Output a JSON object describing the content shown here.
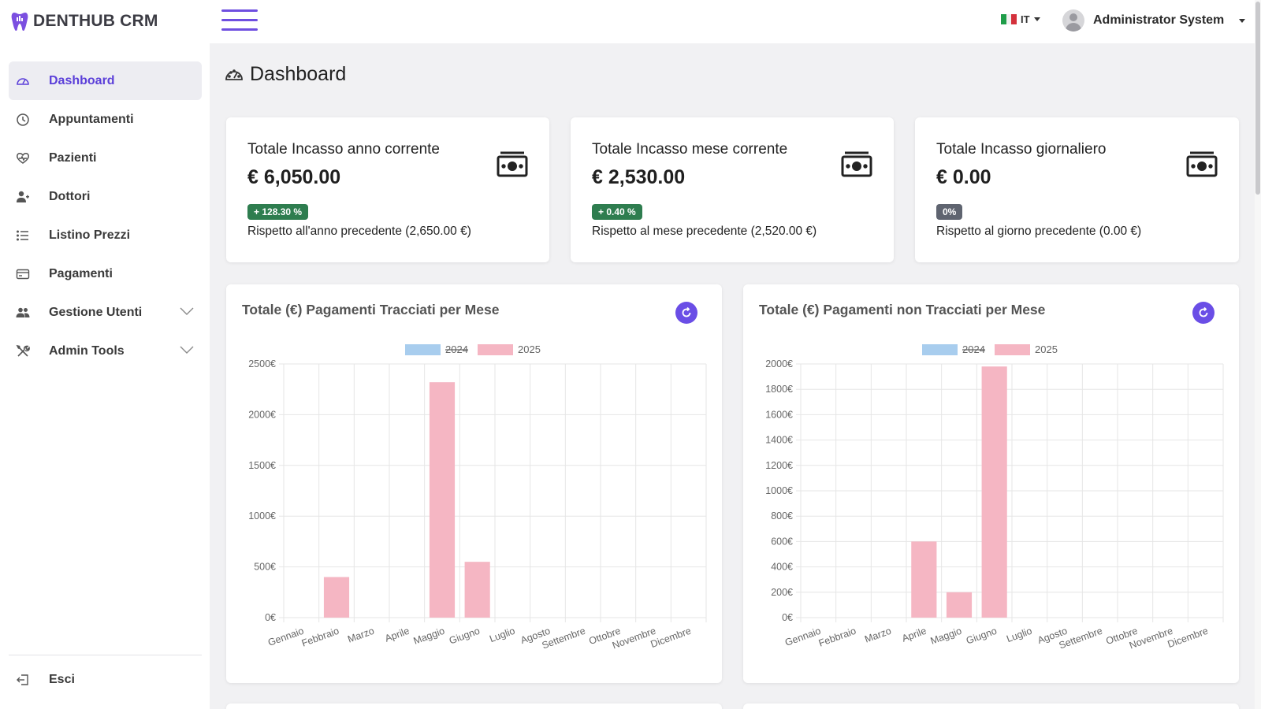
{
  "brand": {
    "name": "DENTHUB CRM"
  },
  "header": {
    "language": "IT",
    "user_name": "Administrator System"
  },
  "sidebar": {
    "items": [
      {
        "label": "Dashboard",
        "icon": "gauge-icon",
        "active": true
      },
      {
        "label": "Appuntamenti",
        "icon": "clock-icon"
      },
      {
        "label": "Pazienti",
        "icon": "heart-pulse-icon"
      },
      {
        "label": "Dottori",
        "icon": "user-doctor-icon"
      },
      {
        "label": "Listino Prezzi",
        "icon": "list-icon"
      },
      {
        "label": "Pagamenti",
        "icon": "credit-card-icon"
      },
      {
        "label": "Gestione Utenti",
        "icon": "users-icon",
        "expandable": true
      },
      {
        "label": "Admin Tools",
        "icon": "tools-icon",
        "expandable": true
      }
    ],
    "logout_label": "Esci"
  },
  "page": {
    "title": "Dashboard"
  },
  "stats": [
    {
      "title": "Totale Incasso anno corrente",
      "value": "€ 6,050.00",
      "badge": "+ 128.30 %",
      "badge_color": "#2e7d4f",
      "compare": "Rispetto all'anno precedente (2,650.00 €)"
    },
    {
      "title": "Totale Incasso mese corrente",
      "value": "€ 2,530.00",
      "badge": "+ 0.40 %",
      "badge_color": "#2e7d4f",
      "compare": "Rispetto al mese precedente (2,520.00 €)"
    },
    {
      "title": "Totale Incasso giornaliero",
      "value": "€ 0.00",
      "badge": "0%",
      "badge_color": "#5f6470",
      "compare": "Rispetto al giorno precedente (0.00 €)"
    }
  ],
  "colors": {
    "accent": "#6a4ee6",
    "series_2024": "#a8cdee",
    "series_2025": "#f5b6c3"
  },
  "chart_data": [
    {
      "type": "bar",
      "title": "Totale (€) Pagamenti Tracciati per Mese",
      "categories": [
        "Gennaio",
        "Febbraio",
        "Marzo",
        "Aprile",
        "Maggio",
        "Giugno",
        "Luglio",
        "Agosto",
        "Settembre",
        "Ottobre",
        "Novembre",
        "Dicembre"
      ],
      "series": [
        {
          "name": "2024",
          "hidden": true,
          "values": [
            0,
            0,
            0,
            0,
            0,
            0,
            0,
            0,
            0,
            0,
            0,
            0
          ]
        },
        {
          "name": "2025",
          "values": [
            0,
            400,
            0,
            0,
            2320,
            550,
            0,
            0,
            0,
            0,
            0,
            0
          ]
        }
      ],
      "yticks": [
        "0€",
        "500€",
        "1000€",
        "1500€",
        "2000€",
        "2500€"
      ],
      "ylim": [
        0,
        2500
      ],
      "legend": "top",
      "grid": true
    },
    {
      "type": "bar",
      "title": "Totale (€) Pagamenti non Tracciati per Mese",
      "categories": [
        "Gennaio",
        "Febbraio",
        "Marzo",
        "Aprile",
        "Maggio",
        "Giugno",
        "Luglio",
        "Agosto",
        "Settembre",
        "Ottobre",
        "Novembre",
        "Dicembre"
      ],
      "series": [
        {
          "name": "2024",
          "hidden": true,
          "values": [
            0,
            0,
            0,
            0,
            0,
            0,
            0,
            0,
            0,
            0,
            0,
            0
          ]
        },
        {
          "name": "2025",
          "values": [
            0,
            0,
            0,
            600,
            200,
            1980,
            0,
            0,
            0,
            0,
            0,
            0
          ]
        }
      ],
      "yticks": [
        "0€",
        "200€",
        "400€",
        "600€",
        "800€",
        "1000€",
        "1200€",
        "1400€",
        "1600€",
        "1800€",
        "2000€"
      ],
      "ylim": [
        0,
        2000
      ],
      "legend": "top",
      "grid": true
    }
  ]
}
